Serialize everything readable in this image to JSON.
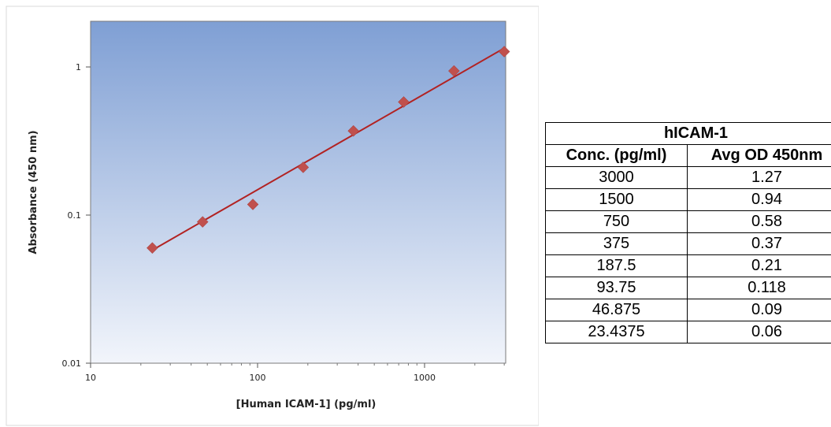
{
  "chart_data": {
    "type": "scatter",
    "xlabel": "[Human ICAM-1] (pg/ml)",
    "ylabel": "Absorbance (450 nm)",
    "xscale": "log",
    "yscale": "log",
    "xlim": [
      10,
      3000
    ],
    "ylim": [
      0.01,
      2
    ],
    "x_ticks": [
      10,
      100,
      1000
    ],
    "x_tick_labels": [
      "10",
      "100",
      "1000"
    ],
    "y_ticks": [
      0.01,
      0.1,
      1
    ],
    "y_tick_labels": [
      "0.01",
      "0.1",
      "1"
    ],
    "grid": false,
    "colors": {
      "plot_background_top": "#7f9fd4",
      "plot_background_bottom": "#f2f5fb",
      "marker": "#c0504d",
      "fit_line": "#b22222"
    },
    "series": [
      {
        "x": [
          23.4375,
          46.875,
          93.75,
          187.5,
          375,
          750,
          1500,
          3000
        ],
        "y": [
          0.06,
          0.09,
          0.118,
          0.21,
          0.37,
          0.58,
          0.94,
          1.27
        ],
        "marker": "diamond"
      }
    ],
    "fit_line": {
      "x": [
        23.4375,
        3000
      ],
      "y": [
        0.058,
        1.34
      ]
    }
  },
  "table": {
    "title": "hICAM-1",
    "headers": [
      "Conc. (pg/ml)",
      "Avg OD 450nm"
    ],
    "rows": [
      [
        "3000",
        "1.27"
      ],
      [
        "1500",
        "0.94"
      ],
      [
        "750",
        "0.58"
      ],
      [
        "375",
        "0.37"
      ],
      [
        "187.5",
        "0.21"
      ],
      [
        "93.75",
        "0.118"
      ],
      [
        "46.875",
        "0.09"
      ],
      [
        "23.4375",
        "0.06"
      ]
    ]
  }
}
